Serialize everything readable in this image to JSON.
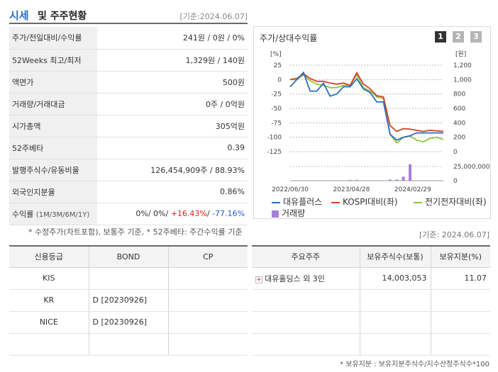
{
  "header": {
    "title_main": "시세",
    "title_sub": "및 주주현황",
    "date": "[기준:2024.06.07]"
  },
  "info_rows": [
    {
      "key": "주가/전일대비/수익률",
      "value": "241원 / 0원 / 0%"
    },
    {
      "key": "52Weeks 최고/최저",
      "value": "1,329원 / 140원"
    },
    {
      "key": "액면가",
      "value": "500원"
    },
    {
      "key": "거래량/거래대금",
      "value": "0주 / 0억원"
    },
    {
      "key": "시가총액",
      "value": "305억원"
    },
    {
      "key": "52주베타",
      "value": "0.39"
    },
    {
      "key": "발행주식수/유동비율",
      "value": "126,454,909주 / 88.93%"
    },
    {
      "key": "외국인지분율",
      "value": "0.86%"
    }
  ],
  "return_row": {
    "key": "수익률",
    "key_sub": "(1M/3M/6M/1Y)",
    "v1": "0%",
    "v2": "0%",
    "v3": "+16.43%",
    "v4": "-77.16%",
    "sep": "/ "
  },
  "notes": {
    "left": "* 수정주가(차트포함), 보통주 기준, * 52주베타: 주간수익률 기준",
    "right_date": "[기준: 2024.06.07]",
    "footer": "* 보유지분 : 보유지분주식수/지수산정주식수*100"
  },
  "chart": {
    "title": "주가/상대수익률",
    "pages": [
      "1",
      "2",
      "3"
    ],
    "left_unit": "[%]",
    "right_unit": "[원]",
    "left_ticks": [
      "25",
      "0",
      "-25",
      "-50",
      "-75",
      "-100",
      "-125"
    ],
    "right_ticks": [
      "1,200",
      "1,000",
      "800",
      "600",
      "400",
      "200",
      "0"
    ],
    "volume_tick": "25,000,000",
    "volume_zero": "0",
    "x_ticks": [
      "2022/06/30",
      "2023/04/28",
      "2024/02/29"
    ],
    "legend": [
      "대유플러스",
      "KOSPI대비(좌)",
      "전기전자대비(좌)",
      "거래량"
    ],
    "colors": {
      "price": "#2b6fc0",
      "kospi": "#d8402a",
      "sector": "#8cc63f",
      "volume": "#a77fd9"
    }
  },
  "chart_data": {
    "type": "line",
    "x": [
      "2022/06/30",
      "",
      "",
      "",
      "",
      "",
      "",
      "",
      "",
      "2023/04/28",
      "",
      "",
      "",
      "",
      "",
      "",
      "",
      "",
      "2024/02/29",
      "",
      "",
      "",
      "",
      ""
    ],
    "series": [
      {
        "name": "대유플러스",
        "axis": "right",
        "values": [
          900,
          1000,
          1100,
          840,
          840,
          950,
          770,
          800,
          900,
          900,
          1010,
          870,
          820,
          690,
          690,
          240,
          160,
          200,
          220,
          260,
          260,
          260,
          260,
          260
        ]
      },
      {
        "name": "KOSPI대비(좌)",
        "axis": "left",
        "values": [
          0,
          2,
          10,
          2,
          -3,
          -3,
          -6,
          -8,
          -6,
          -10,
          12,
          -8,
          -16,
          -28,
          -30,
          -80,
          -90,
          -85,
          -86,
          -88,
          -90,
          -88,
          -89,
          -90
        ]
      },
      {
        "name": "전기전자대비(좌)",
        "axis": "left",
        "values": [
          0,
          0,
          8,
          -2,
          -8,
          -10,
          -14,
          -14,
          -10,
          -10,
          8,
          -14,
          -20,
          -30,
          -33,
          -95,
          -110,
          -100,
          -98,
          -105,
          -108,
          -102,
          -100,
          -104
        ]
      },
      {
        "name": "거래량",
        "axis": "volume",
        "values": [
          0,
          0,
          0,
          0,
          0,
          0,
          0,
          0,
          0,
          500000,
          300000,
          0,
          0,
          0,
          0,
          2000000,
          2000000,
          7000000,
          29000000,
          0,
          0,
          0,
          0,
          0
        ]
      }
    ],
    "ylim_left": [
      -125,
      25
    ],
    "ylim_right": [
      0,
      1200
    ]
  },
  "credit": {
    "headers": [
      "신용등급",
      "BOND",
      "CP"
    ],
    "rows": [
      [
        "KIS",
        "",
        ""
      ],
      [
        "KR",
        "D  [20230926]",
        ""
      ],
      [
        "NICE",
        "D  [20230926]",
        ""
      ],
      [
        "",
        "",
        ""
      ]
    ]
  },
  "holders": {
    "headers": [
      "주요주주",
      "보유주식수(보통)",
      "보유지분(%)"
    ],
    "rows": [
      [
        "대유홀딩스 외 3인",
        "14,003,053",
        "11.07"
      ],
      [
        "",
        "",
        ""
      ],
      [
        "",
        "",
        ""
      ],
      [
        "",
        "",
        ""
      ]
    ]
  }
}
